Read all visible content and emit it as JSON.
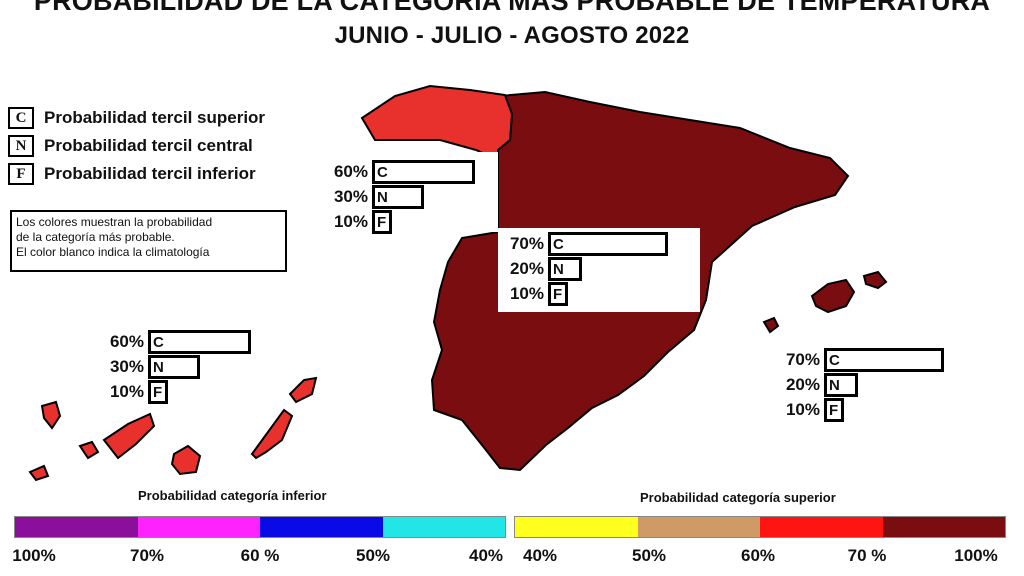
{
  "header": {
    "title_line1": "PROBABILIDAD DE LA CATEGORÍA MÁS PROBABLE DE TEMPERATURA",
    "title_line2": "JUNIO - JULIO - AGOSTO 2022"
  },
  "legend": {
    "items": [
      {
        "key": "C",
        "label": "Probabilidad tercil superior"
      },
      {
        "key": "N",
        "label": "Probabilidad tercil central"
      },
      {
        "key": "F",
        "label": "Probabilidad tercil inferior"
      }
    ],
    "note_lines": [
      "Los colores muestran la probabilidad",
      "de la categoría más probable.",
      "El color blanco indica la climatología"
    ]
  },
  "regions": [
    {
      "name": "Galicia",
      "fill": "#e8312d",
      "probs": [
        {
          "key": "C",
          "pct": "60%",
          "value": 60
        },
        {
          "key": "N",
          "pct": "30%",
          "value": 30
        },
        {
          "key": "F",
          "pct": "10%",
          "value": 10
        }
      ]
    },
    {
      "name": "Peninsula",
      "fill": "#7a0d10",
      "probs": [
        {
          "key": "C",
          "pct": "70%",
          "value": 70
        },
        {
          "key": "N",
          "pct": "20%",
          "value": 20
        },
        {
          "key": "F",
          "pct": "10%",
          "value": 10
        }
      ]
    },
    {
      "name": "Canarias",
      "fill": "#e8312d",
      "probs": [
        {
          "key": "C",
          "pct": "60%",
          "value": 60
        },
        {
          "key": "N",
          "pct": "30%",
          "value": 30
        },
        {
          "key": "F",
          "pct": "10%",
          "value": 10
        }
      ]
    },
    {
      "name": "Baleares",
      "fill": "#7a0d10",
      "probs": [
        {
          "key": "C",
          "pct": "70%",
          "value": 70
        },
        {
          "key": "N",
          "pct": "20%",
          "value": 20
        },
        {
          "key": "F",
          "pct": "10%",
          "value": 10
        }
      ]
    }
  ],
  "scales": {
    "inferior": {
      "title": "Probabilidad categoría inferior",
      "colors": [
        "#8a0f9a",
        "#ff22ff",
        "#0a0ae6",
        "#22e6e6"
      ],
      "labels": [
        "100%",
        "70%",
        "60 %",
        "50%",
        "40%"
      ]
    },
    "superior": {
      "title": "Probabilidad categoría superior",
      "colors": [
        "#ffff1e",
        "#cf9a66",
        "#ff1414",
        "#7a0d10"
      ],
      "labels": [
        "40%",
        "50%",
        "60%",
        "70 %",
        "100%"
      ]
    }
  }
}
